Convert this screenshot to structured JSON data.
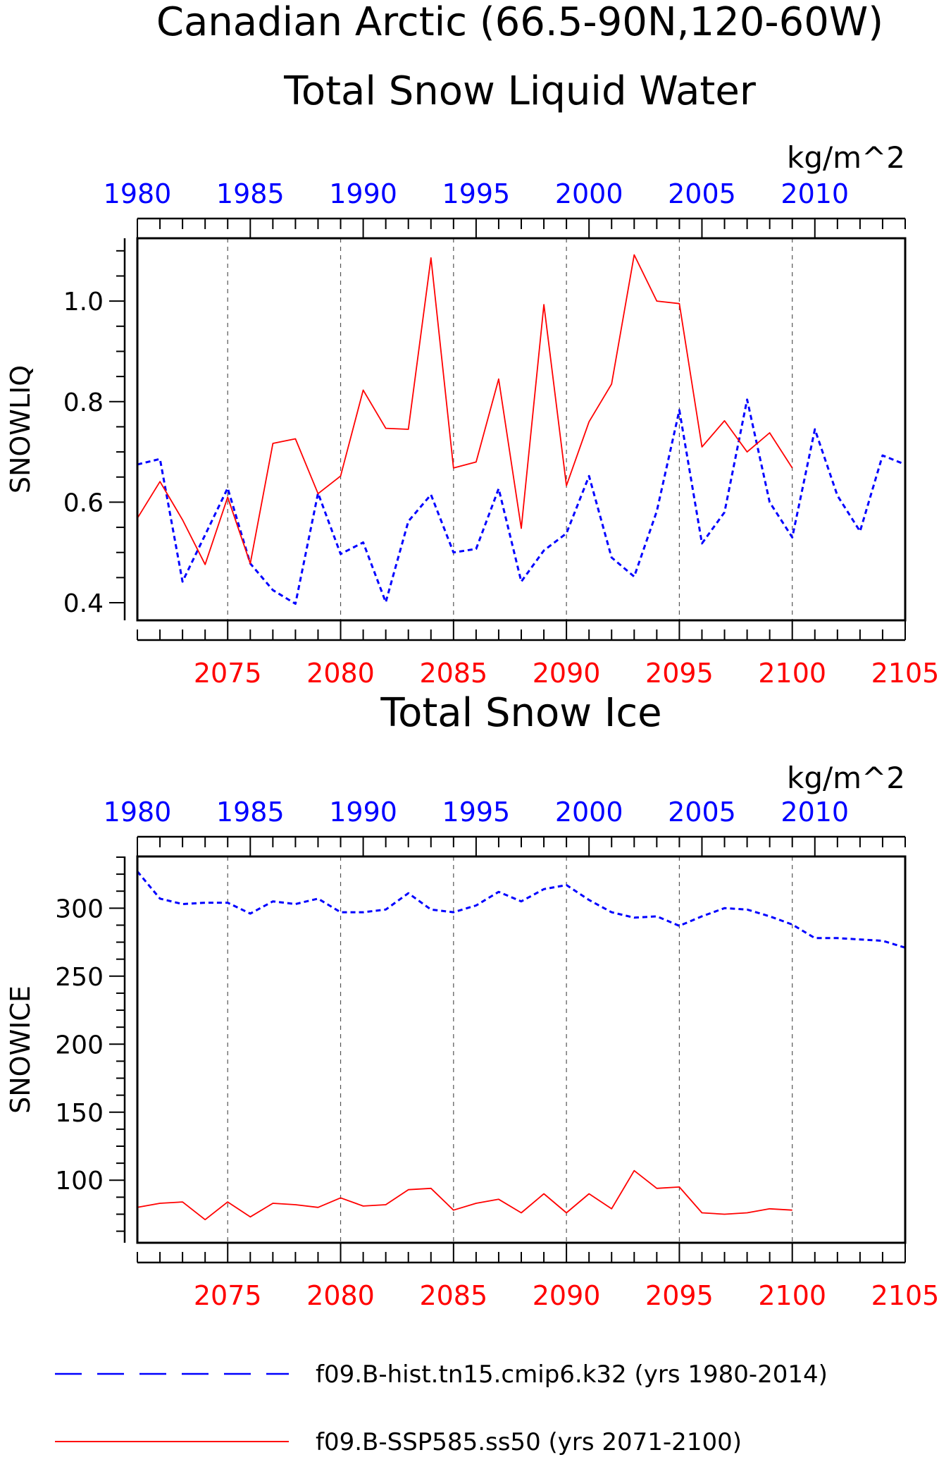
{
  "title_line1": "Canadian Arctic (66.5-90N,120-60W)",
  "colors": {
    "hist": "#0000ff",
    "ssp": "#ff0000",
    "axis": "#000000",
    "grid": "#555555"
  },
  "legend": [
    {
      "label": "f09.B-hist.tn15.cmip6.k32 (yrs 1980-2014)",
      "color": "#0000ff",
      "style": "dashed"
    },
    {
      "label": "f09.B-SSP585.ss50 (yrs 2071-2100)",
      "color": "#ff0000",
      "style": "solid"
    }
  ],
  "chart_data": [
    {
      "type": "line",
      "title": "Total Snow Liquid Water",
      "units": "kg/m^2",
      "ylabel": "SNOWLIQ",
      "ylim": [
        0.365,
        1.125
      ],
      "yticks": [
        0.4,
        0.6,
        0.8,
        1.0
      ],
      "ytick_labels": [
        "0.4",
        "0.6",
        "0.8",
        "1.0"
      ],
      "top_axis": {
        "range": [
          1980,
          2014
        ],
        "ticks": [
          1980,
          1985,
          1990,
          1995,
          2000,
          2005,
          2010
        ],
        "color": "#0000ff"
      },
      "bottom_axis": {
        "range": [
          2071,
          2105
        ],
        "ticks": [
          2075,
          2080,
          2085,
          2090,
          2095,
          2100,
          2105
        ],
        "color": "#ff0000"
      },
      "grid_vertical": [
        2075,
        2080,
        2085,
        2090,
        2095,
        2100
      ],
      "series": [
        {
          "name": "f09.B-hist.tn15.cmip6.k32 (yrs 1980-2014)",
          "axis": "top",
          "style": "dashed",
          "color": "#0000ff",
          "x": [
            1980,
            1981,
            1982,
            1983,
            1984,
            1985,
            1986,
            1987,
            1988,
            1989,
            1990,
            1991,
            1992,
            1993,
            1994,
            1995,
            1996,
            1997,
            1998,
            1999,
            2000,
            2001,
            2002,
            2003,
            2004,
            2005,
            2006,
            2007,
            2008,
            2009,
            2010,
            2011,
            2012,
            2013,
            2014
          ],
          "y": [
            0.675,
            0.686,
            0.442,
            0.535,
            0.628,
            0.478,
            0.425,
            0.398,
            0.618,
            0.497,
            0.52,
            0.401,
            0.562,
            0.615,
            0.5,
            0.507,
            0.627,
            0.442,
            0.504,
            0.538,
            0.652,
            0.49,
            0.452,
            0.582,
            0.783,
            0.518,
            0.58,
            0.804,
            0.6,
            0.53,
            0.745,
            0.613,
            0.542,
            0.693,
            0.675
          ]
        },
        {
          "name": "f09.B-SSP585.ss50 (yrs 2071-2100)",
          "axis": "bottom",
          "style": "solid",
          "color": "#ff0000",
          "x": [
            2071,
            2072,
            2073,
            2074,
            2075,
            2076,
            2077,
            2078,
            2079,
            2080,
            2081,
            2082,
            2083,
            2084,
            2085,
            2086,
            2087,
            2088,
            2089,
            2090,
            2091,
            2092,
            2093,
            2094,
            2095,
            2096,
            2097,
            2098,
            2099,
            2100
          ],
          "y": [
            0.568,
            0.641,
            0.565,
            0.476,
            0.61,
            0.478,
            0.717,
            0.726,
            0.617,
            0.652,
            0.823,
            0.747,
            0.745,
            1.086,
            0.668,
            0.68,
            0.845,
            0.548,
            0.993,
            0.633,
            0.76,
            0.835,
            1.092,
            1.0,
            0.995,
            0.71,
            0.762,
            0.7,
            0.738,
            0.668
          ]
        }
      ]
    },
    {
      "type": "line",
      "title": "Total Snow Ice",
      "units": "kg/m^2",
      "ylabel": "SNOWICE",
      "ylim": [
        54,
        338
      ],
      "yticks": [
        100,
        150,
        200,
        250,
        300
      ],
      "ytick_labels": [
        "100",
        "150",
        "200",
        "250",
        "300"
      ],
      "top_axis": {
        "range": [
          1980,
          2014
        ],
        "ticks": [
          1980,
          1985,
          1990,
          1995,
          2000,
          2005,
          2010
        ],
        "color": "#0000ff"
      },
      "bottom_axis": {
        "range": [
          2071,
          2105
        ],
        "ticks": [
          2075,
          2080,
          2085,
          2090,
          2095,
          2100,
          2105
        ],
        "color": "#ff0000"
      },
      "grid_vertical": [
        2075,
        2080,
        2085,
        2090,
        2095,
        2100
      ],
      "series": [
        {
          "name": "f09.B-hist.tn15.cmip6.k32 (yrs 1980-2014)",
          "axis": "top",
          "style": "dashed",
          "color": "#0000ff",
          "x": [
            1980,
            1981,
            1982,
            1983,
            1984,
            1985,
            1986,
            1987,
            1988,
            1989,
            1990,
            1991,
            1992,
            1993,
            1994,
            1995,
            1996,
            1997,
            1998,
            1999,
            2000,
            2001,
            2002,
            2003,
            2004,
            2005,
            2006,
            2007,
            2008,
            2009,
            2010,
            2011,
            2012,
            2013,
            2014
          ],
          "y": [
            327,
            307,
            303,
            304,
            304,
            296,
            305,
            303,
            307,
            297,
            297,
            299,
            311,
            299,
            297,
            302,
            312,
            305,
            314,
            317,
            306,
            297,
            293,
            294,
            287,
            294,
            300,
            299,
            294,
            288,
            278,
            278,
            277,
            276,
            271
          ]
        },
        {
          "name": "f09.B-SSP585.ss50 (yrs 2071-2100)",
          "axis": "bottom",
          "style": "solid",
          "color": "#ff0000",
          "x": [
            2071,
            2072,
            2073,
            2074,
            2075,
            2076,
            2077,
            2078,
            2079,
            2080,
            2081,
            2082,
            2083,
            2084,
            2085,
            2086,
            2087,
            2088,
            2089,
            2090,
            2091,
            2092,
            2093,
            2094,
            2095,
            2096,
            2097,
            2098,
            2099,
            2100
          ],
          "y": [
            80,
            83,
            84,
            71,
            84,
            73,
            83,
            82,
            80,
            87,
            81,
            82,
            93,
            94,
            78,
            83,
            86,
            76,
            90,
            76,
            90,
            79,
            107,
            94,
            95,
            76,
            75,
            76,
            79,
            78
          ]
        }
      ]
    }
  ]
}
